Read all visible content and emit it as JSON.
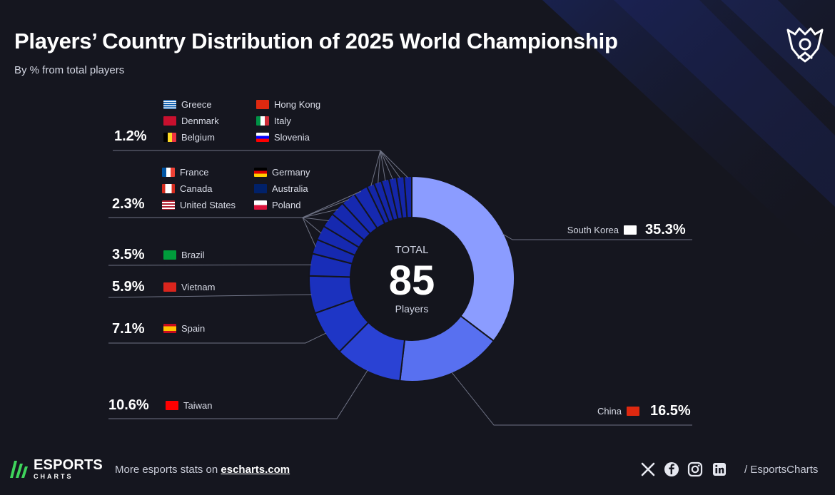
{
  "title": "Players’ Country Distribution of 2025 World Championship",
  "subtitle": "By % from total players",
  "center": {
    "top": "TOTAL",
    "value": "85",
    "bottom": "Players"
  },
  "footer": {
    "brand_main": "ESPORTS",
    "brand_sub": "CHARTS",
    "more_text": "More esports stats on ",
    "link_text": "escharts.com",
    "handle": "/ EsportsCharts"
  },
  "icons": [
    "esports-charts-logo-icon",
    "worlds-trophy-icon",
    "x-icon",
    "facebook-icon",
    "instagram-icon",
    "linkedin-icon"
  ],
  "chart_data": {
    "type": "donut",
    "total_players": 85,
    "slices": [
      {
        "name": "South Korea",
        "value": 35.3,
        "color": "#8b9cff"
      },
      {
        "name": "China",
        "value": 16.5,
        "color": "#5870f0"
      },
      {
        "name": "Taiwan",
        "value": 10.6,
        "color": "#2a42d4"
      },
      {
        "name": "Spain",
        "value": 7.1,
        "color": "#1e36c6"
      },
      {
        "name": "Vietnam",
        "value": 5.9,
        "color": "#1b31be"
      },
      {
        "name": "Brazil",
        "value": 3.5,
        "color": "#182db8"
      },
      {
        "name": "France",
        "value": 2.3,
        "color": "#1629b0"
      },
      {
        "name": "Canada",
        "value": 2.3,
        "color": "#1629b0"
      },
      {
        "name": "United States",
        "value": 2.3,
        "color": "#1629b0"
      },
      {
        "name": "Germany",
        "value": 2.3,
        "color": "#1629b0"
      },
      {
        "name": "Australia",
        "value": 2.3,
        "color": "#1629b0"
      },
      {
        "name": "Poland",
        "value": 2.3,
        "color": "#1629b0"
      },
      {
        "name": "Greece",
        "value": 1.2,
        "color": "#1426a8"
      },
      {
        "name": "Denmark",
        "value": 1.2,
        "color": "#1426a8"
      },
      {
        "name": "Belgium",
        "value": 1.2,
        "color": "#1426a8"
      },
      {
        "name": "Hong Kong",
        "value": 1.2,
        "color": "#1426a8"
      },
      {
        "name": "Italy",
        "value": 1.2,
        "color": "#1426a8"
      },
      {
        "name": "Slovenia",
        "value": 1.2,
        "color": "#1426a8"
      }
    ],
    "groups": [
      {
        "pct": "35.3%",
        "countries": [
          "South Korea"
        ]
      },
      {
        "pct": "16.5%",
        "countries": [
          "China"
        ]
      },
      {
        "pct": "10.6%",
        "countries": [
          "Taiwan"
        ]
      },
      {
        "pct": "7.1%",
        "countries": [
          "Spain"
        ]
      },
      {
        "pct": "5.9%",
        "countries": [
          "Vietnam"
        ]
      },
      {
        "pct": "3.5%",
        "countries": [
          "Brazil"
        ]
      },
      {
        "pct": "2.3%",
        "countries": [
          "France",
          "Canada",
          "United States",
          "Germany",
          "Australia",
          "Poland"
        ]
      },
      {
        "pct": "1.2%",
        "countries": [
          "Greece",
          "Denmark",
          "Belgium",
          "Hong Kong",
          "Italy",
          "Slovenia"
        ]
      }
    ]
  }
}
